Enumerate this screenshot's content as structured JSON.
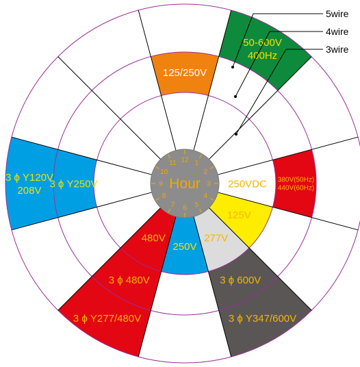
{
  "center": {
    "title": "Hour",
    "hours": [
      "12",
      "1",
      "2",
      "3",
      "4",
      "5",
      "6",
      "7",
      "8",
      "9",
      "10",
      "11"
    ]
  },
  "callouts": [
    {
      "label": "5wire"
    },
    {
      "label": "4wire"
    },
    {
      "label": "3wire"
    }
  ],
  "segments": [
    {
      "hour": 12,
      "ring": 2,
      "label": "125/250V",
      "color": "#F0820F",
      "text_color": "#ffffff"
    },
    {
      "hour": 1,
      "ring": 3,
      "label": "50-600V\n400Hz",
      "color": "#0E8A3C",
      "text_color": "#F2E300"
    },
    {
      "hour": 3,
      "ring": 1,
      "label": "250VDC",
      "color": "#ffffff",
      "text_color": "#F2B700"
    },
    {
      "hour": 3,
      "ring": 2,
      "label": "380V(50Hz)\n440V(60Hz)",
      "color": "#E30613",
      "text_color": "#F2B700"
    },
    {
      "hour": 4,
      "ring": 1,
      "label": "125V",
      "color": "#FFED00",
      "text_color": "#F2B700"
    },
    {
      "hour": 5,
      "ring": 1,
      "label": "277V",
      "color": "#DCDCDC",
      "text_color": "#F2B700"
    },
    {
      "hour": 5,
      "ring": 2,
      "label": "3 ϕ 600V",
      "color": "#5A5656",
      "text_color": "#F2B700"
    },
    {
      "hour": 5,
      "ring": 3,
      "label": "3 ϕ Y347/600V",
      "color": "#5A5656",
      "text_color": "#F2B700"
    },
    {
      "hour": 6,
      "ring": 1,
      "label": "250V",
      "color": "#009FE3",
      "text_color": "#F2E300"
    },
    {
      "hour": 7,
      "ring": 1,
      "label": "480V",
      "color": "#E30613",
      "text_color": "#F2B700"
    },
    {
      "hour": 7,
      "ring": 2,
      "label": "3 ϕ 480V",
      "color": "#E30613",
      "text_color": "#F2B700"
    },
    {
      "hour": 7,
      "ring": 3,
      "label": "3 ϕ Y277/480V",
      "color": "#E30613",
      "text_color": "#F2B700"
    },
    {
      "hour": 9,
      "ring": 2,
      "label": "3 ϕ Y250V",
      "color": "#009FE3",
      "text_color": "#F2E300"
    },
    {
      "hour": 9,
      "ring": 3,
      "label": "3 ϕ Y120V\n208V",
      "color": "#009FE3",
      "text_color": "#F2E300"
    }
  ],
  "colors": {
    "ring_stroke": "#9B2D9B",
    "spoke": "#000000",
    "hub_fill": "#8C8C8C",
    "hub_text": "#F2A900"
  }
}
